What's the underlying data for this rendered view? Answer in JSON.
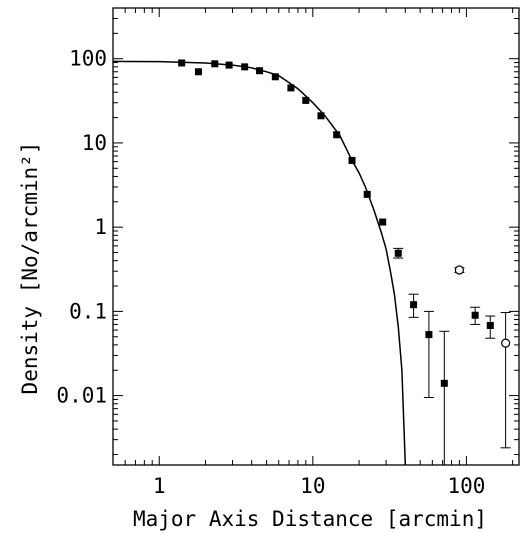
{
  "chart_data": {
    "type": "scatter",
    "title": "",
    "xlabel": "Major Axis Distance [arcmin]",
    "ylabel": "Density [No/arcmin²]",
    "xscale": "log",
    "yscale": "log",
    "xlim": [
      0.5,
      220
    ],
    "ylim": [
      0.0015,
      400
    ],
    "grid": false,
    "xticks": [
      {
        "value": 1,
        "label": "1"
      },
      {
        "value": 10,
        "label": "10"
      },
      {
        "value": 100,
        "label": "100"
      }
    ],
    "yticks": [
      {
        "value": 0.01,
        "label": "0.01"
      },
      {
        "value": 0.1,
        "label": "0.1"
      },
      {
        "value": 1,
        "label": "1"
      },
      {
        "value": 10,
        "label": "10"
      },
      {
        "value": 100,
        "label": "100"
      }
    ],
    "series": [
      {
        "marker": "filled-square",
        "points": [
          {
            "x": 1.4,
            "y": 89
          },
          {
            "x": 1.8,
            "y": 70
          },
          {
            "x": 2.3,
            "y": 87
          },
          {
            "x": 2.85,
            "y": 84
          },
          {
            "x": 3.6,
            "y": 80
          },
          {
            "x": 4.5,
            "y": 72
          },
          {
            "x": 5.7,
            "y": 61
          },
          {
            "x": 7.2,
            "y": 45
          },
          {
            "x": 9.0,
            "y": 32
          },
          {
            "x": 11.3,
            "y": 21
          },
          {
            "x": 14.3,
            "y": 12.5
          },
          {
            "x": 18.0,
            "y": 6.2
          },
          {
            "x": 22.6,
            "y": 2.45
          },
          {
            "x": 28.5,
            "y": 1.15
          },
          {
            "x": 36.0,
            "y": 0.49,
            "err_low": 0.43,
            "err_high": 0.56
          },
          {
            "x": 45.3,
            "y": 0.12,
            "err_low": 0.085,
            "err_high": 0.16
          },
          {
            "x": 57.0,
            "y": 0.053,
            "err_low": 0.0095,
            "err_high": 0.1
          },
          {
            "x": 71.8,
            "y": 0.014,
            "err_low": 0.0015,
            "err_high": 0.058
          },
          {
            "x": 114,
            "y": 0.09,
            "err_low": 0.07,
            "err_high": 0.112
          },
          {
            "x": 143,
            "y": 0.068,
            "err_low": 0.048,
            "err_high": 0.088
          }
        ]
      },
      {
        "marker": "open-circle",
        "points": [
          {
            "x": 90,
            "y": 0.31,
            "err_low": 0.29,
            "err_high": 0.33
          },
          {
            "x": 180,
            "y": 0.042,
            "err_low": 0.0024,
            "err_high": 0.097
          }
        ]
      }
    ],
    "curve": {
      "type": "model-fit",
      "points": [
        [
          0.5,
          93
        ],
        [
          1,
          92.5
        ],
        [
          2,
          89
        ],
        [
          3,
          84
        ],
        [
          4,
          78
        ],
        [
          5,
          70
        ],
        [
          6,
          63
        ],
        [
          7,
          52
        ],
        [
          8,
          44
        ],
        [
          9,
          36
        ],
        [
          10,
          30
        ],
        [
          12,
          21
        ],
        [
          15,
          12.2
        ],
        [
          18,
          6.2
        ],
        [
          20,
          4.4
        ],
        [
          22,
          3.0
        ],
        [
          25,
          1.6
        ],
        [
          28,
          0.85
        ],
        [
          30,
          0.55
        ],
        [
          32,
          0.3
        ],
        [
          34,
          0.16
        ],
        [
          36,
          0.065
        ],
        [
          38,
          0.02
        ],
        [
          40,
          0.0015
        ]
      ]
    }
  }
}
